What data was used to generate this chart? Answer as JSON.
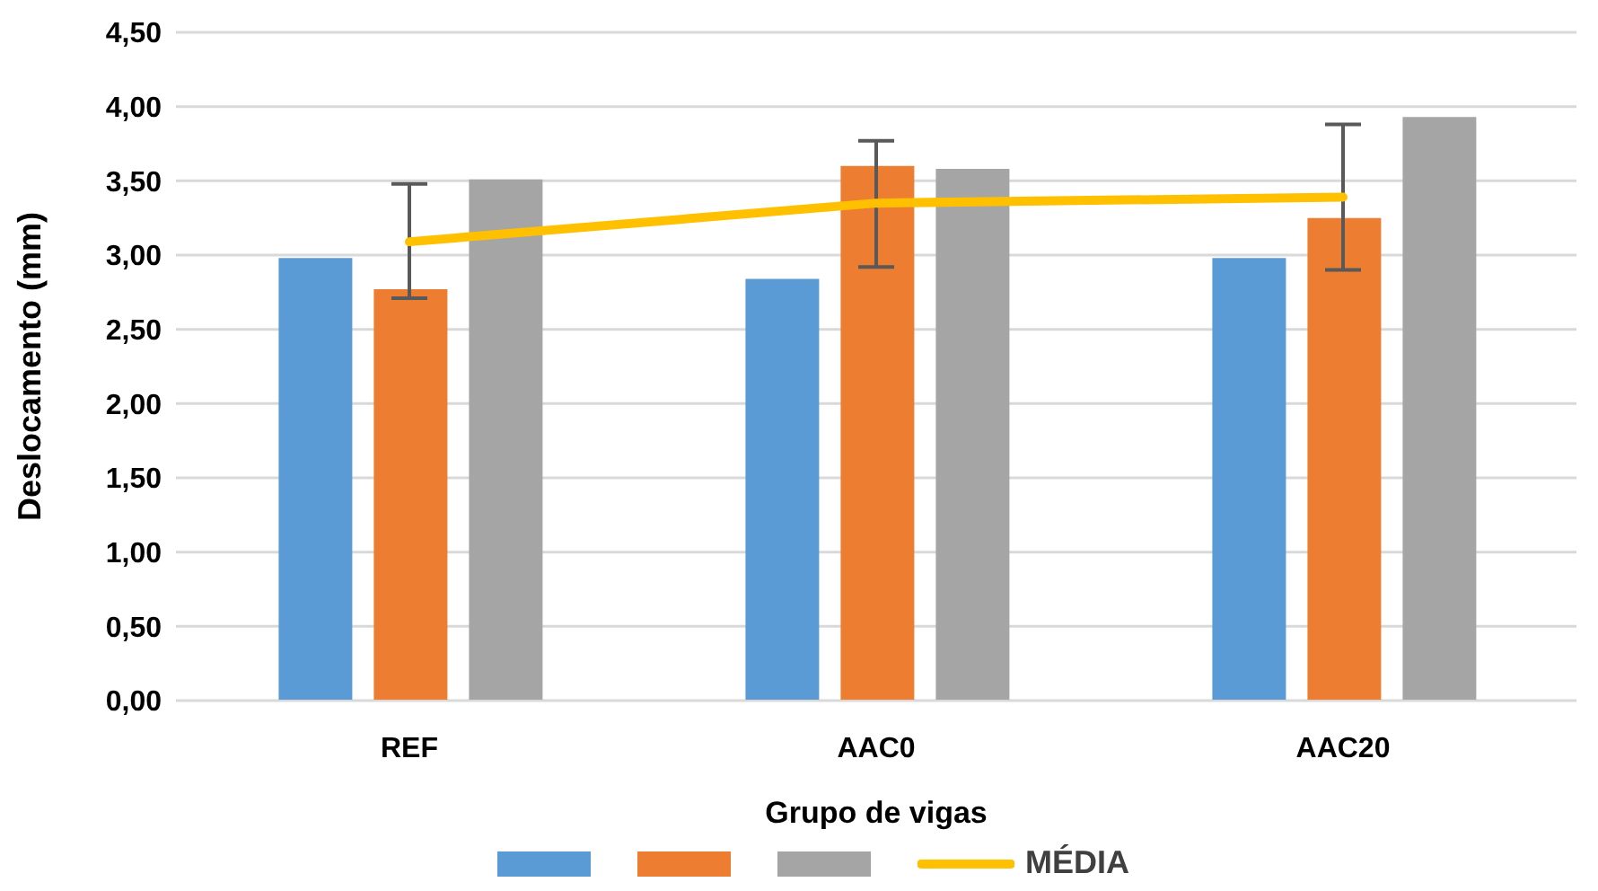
{
  "chart_data": {
    "type": "bar",
    "xlabel": "Grupo de vigas",
    "ylabel": "Deslocamento (mm)",
    "categories": [
      "REF",
      "AAC0",
      "AAC20"
    ],
    "series": [
      {
        "color": "#5b9bd5",
        "values": [
          2.98,
          2.84,
          2.98
        ]
      },
      {
        "color": "#ed7d31",
        "values": [
          2.77,
          3.6,
          3.25
        ]
      },
      {
        "color": "#a5a5a5",
        "values": [
          3.51,
          3.58,
          3.93
        ]
      },
      {
        "type": "line",
        "name": "MÉDIA",
        "color": "#ffc000",
        "values": [
          3.09,
          3.35,
          3.39
        ],
        "errors": [
          [
            2.71,
            3.48
          ],
          [
            2.92,
            3.77
          ],
          [
            2.9,
            3.88
          ]
        ]
      }
    ],
    "ylim": [
      0,
      4.5
    ],
    "yticks": [
      {
        "value": 0,
        "label": "0,00"
      },
      {
        "value": 0.5,
        "label": "0,50"
      },
      {
        "value": 1,
        "label": "1,00"
      },
      {
        "value": 1.5,
        "label": "1,50"
      },
      {
        "value": 2,
        "label": "2,00"
      },
      {
        "value": 2.5,
        "label": "2,50"
      },
      {
        "value": 3,
        "label": "3,00"
      },
      {
        "value": 3.5,
        "label": "3,50"
      },
      {
        "value": 4,
        "label": "4,00"
      },
      {
        "value": 4.5,
        "label": "4,50"
      }
    ],
    "grid": "y",
    "legend": "bottom",
    "marker": "none",
    "line_style": "solid"
  }
}
